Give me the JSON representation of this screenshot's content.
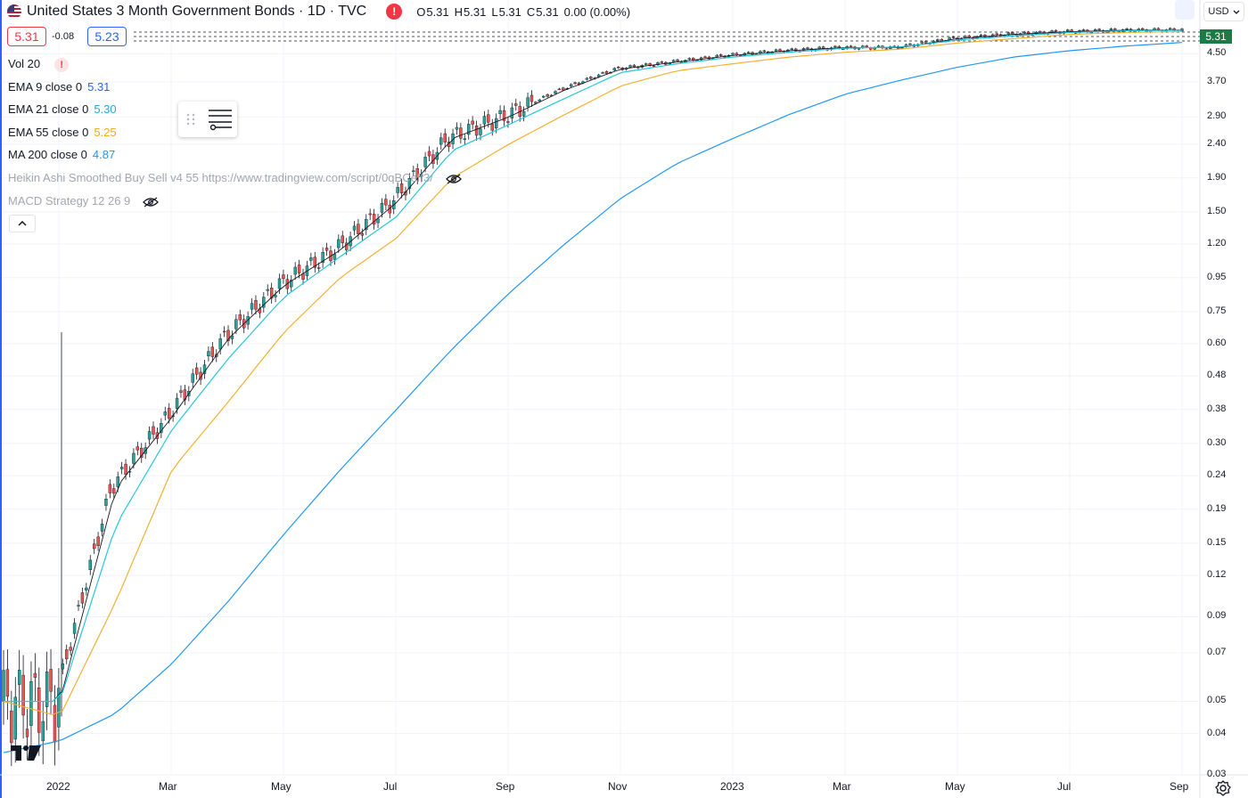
{
  "header": {
    "title": "United States 3 Month Government Bonds · 1D · TVC",
    "alert_icon": "exclamation-icon",
    "ohlc": [
      {
        "label": "O",
        "value": "5.31"
      },
      {
        "label": "H",
        "value": "5.31"
      },
      {
        "label": "L",
        "value": "5.31"
      },
      {
        "label": "C",
        "value": "5.31"
      }
    ],
    "change": "0.00 (0.00%)"
  },
  "trade": {
    "sell": "5.31",
    "spread": "0.08",
    "buy": "5.23"
  },
  "legend": {
    "volume": "Vol 20",
    "ema9": {
      "label": "EMA 9 close 0",
      "value": "5.31"
    },
    "ema21": {
      "label": "EMA 21 close 0",
      "value": "5.30"
    },
    "ema55": {
      "label": "EMA 55 close 0",
      "value": "5.25"
    },
    "ma200": {
      "label": "MA 200 close 0",
      "value": "4.87"
    },
    "heikin": "Heikin Ashi Smoothed Buy Sell v4 55 https://www.tradingview.com/script/0qBCefI3/",
    "macd": "MACD Strategy 12 26 9"
  },
  "price_axis": {
    "currency": "USD",
    "ticks": [
      "4.50",
      "3.70",
      "2.90",
      "2.40",
      "1.90",
      "1.50",
      "1.20",
      "0.95",
      "0.75",
      "0.60",
      "0.48",
      "0.38",
      "0.30",
      "0.24",
      "0.19",
      "0.15",
      "0.12",
      "0.09",
      "0.07",
      "0.05",
      "0.04",
      "0.03"
    ],
    "last_price": "5.31"
  },
  "time_axis": [
    "2022",
    "Mar",
    "May",
    "Jul",
    "Sep",
    "Nov",
    "2023",
    "Mar",
    "May",
    "Jul",
    "Sep"
  ],
  "colors": {
    "ema9": "#131722",
    "ema21": "#26c6da",
    "ema55": "#f2b134",
    "ma200": "#2196f3",
    "up": "#26a69a",
    "down": "#ef5350",
    "accent": "#2962ff",
    "last_price_bg": "#1e7a44"
  },
  "chart_data": {
    "type": "line",
    "log_scale": true,
    "x": [
      "2021-12",
      "2022-01",
      "2022-02",
      "2022-03",
      "2022-04",
      "2022-05",
      "2022-06",
      "2022-07",
      "2022-08",
      "2022-09",
      "2022-10",
      "2022-11",
      "2022-12",
      "2023-01",
      "2023-02",
      "2023-03",
      "2023-04",
      "2023-05",
      "2023-06",
      "2023-07",
      "2023-08",
      "2023-09"
    ],
    "series": [
      {
        "name": "EMA 9 close 0",
        "values": [
          0.05,
          0.05,
          0.22,
          0.36,
          0.62,
          0.9,
          1.15,
          1.6,
          2.5,
          2.9,
          3.5,
          4.05,
          4.25,
          4.45,
          4.6,
          4.7,
          4.7,
          5.0,
          5.15,
          5.25,
          5.3,
          5.31
        ]
      },
      {
        "name": "EMA 21 close 0",
        "values": [
          0.05,
          0.05,
          0.17,
          0.33,
          0.54,
          0.83,
          1.1,
          1.45,
          2.3,
          2.75,
          3.3,
          3.95,
          4.2,
          4.4,
          4.55,
          4.68,
          4.72,
          4.95,
          5.1,
          5.22,
          5.28,
          5.3
        ]
      },
      {
        "name": "EMA 55 close 0",
        "values": [
          0.05,
          0.045,
          0.1,
          0.25,
          0.4,
          0.65,
          0.95,
          1.25,
          1.9,
          2.4,
          2.95,
          3.6,
          4.0,
          4.2,
          4.4,
          4.55,
          4.65,
          4.85,
          5.0,
          5.15,
          5.22,
          5.25
        ]
      },
      {
        "name": "MA 200 close 0",
        "values": [
          0.035,
          0.038,
          0.046,
          0.065,
          0.1,
          0.16,
          0.25,
          0.38,
          0.58,
          0.85,
          1.2,
          1.65,
          2.1,
          2.5,
          2.95,
          3.4,
          3.75,
          4.1,
          4.4,
          4.6,
          4.75,
          4.87
        ]
      }
    ],
    "ylim": [
      0.03,
      5.5
    ]
  }
}
